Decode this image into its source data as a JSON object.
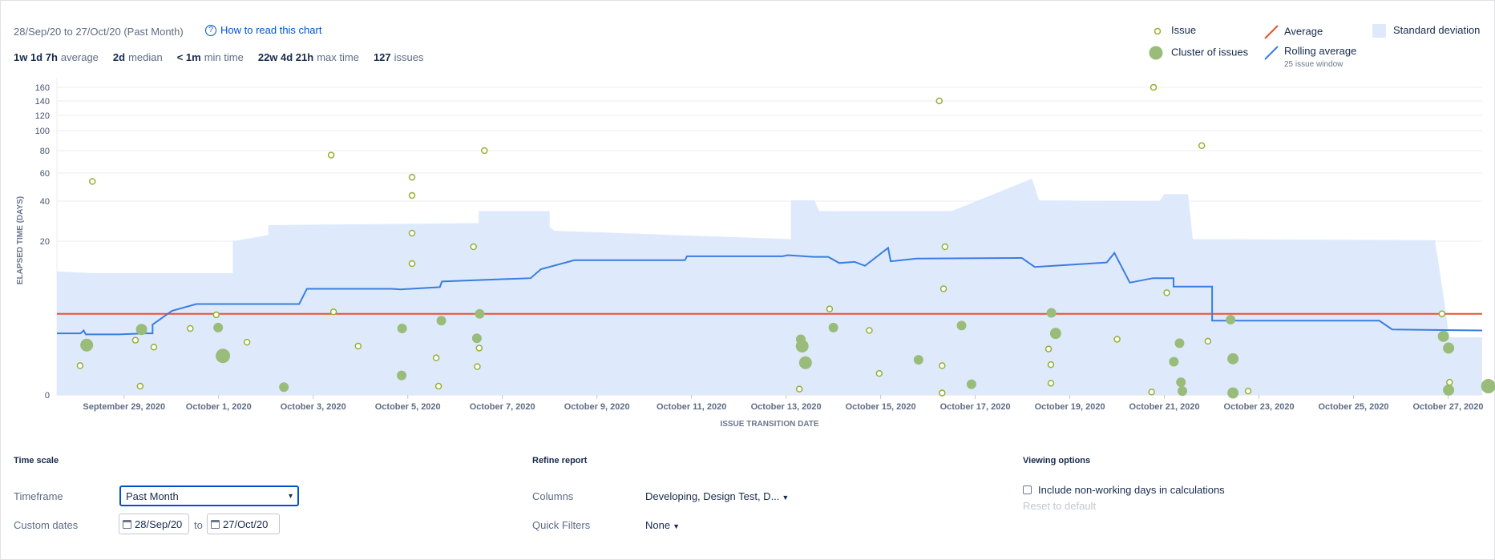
{
  "header": {
    "date_range": "28/Sep/20 to 27/Oct/20 (Past Month)",
    "how_to_link": "How to read this chart",
    "stats": [
      {
        "value": "1w 1d 7h",
        "label": "average"
      },
      {
        "value": "2d",
        "label": "median"
      },
      {
        "value": "< 1m",
        "label": "min time"
      },
      {
        "value": "22w 4d 21h",
        "label": "max time"
      },
      {
        "value": "127",
        "label": "issues"
      }
    ]
  },
  "legend": {
    "issue": "Issue",
    "cluster": "Cluster of issues",
    "average": "Average",
    "rolling": "Rolling average",
    "rolling_sub": "25 issue window",
    "stddev": "Standard deviation"
  },
  "colors": {
    "issue_stroke": "#94b031",
    "cluster_fill": "#99bc7a",
    "average": "#e5532f",
    "rolling": "#3a7de0",
    "stddev": "#deeafb"
  },
  "chart_data": {
    "type": "scatter",
    "xlabel": "ISSUE TRANSITION DATE",
    "ylabel": "ELAPSED TIME (DAYS)",
    "y_ticks": [
      0,
      20,
      40,
      60,
      80,
      100,
      120,
      140,
      160
    ],
    "x_ticks": [
      "September 29, 2020",
      "October 1, 2020",
      "October 3, 2020",
      "October 5, 2020",
      "October 7, 2020",
      "October 9, 2020",
      "October 11, 2020",
      "October 13, 2020",
      "October 15, 2020",
      "October 17, 2020",
      "October 19, 2020",
      "October 21, 2020",
      "October 23, 2020",
      "October 25, 2020",
      "October 27, 2020"
    ],
    "x_range_days": [
      -0.42,
      29.72
    ],
    "y_range": [
      0,
      170
    ],
    "average_days": 8.3,
    "issues": [
      [
        0.07,
        3.0
      ],
      [
        0.33,
        54
      ],
      [
        1.24,
        5.6
      ],
      [
        1.34,
        0.9
      ],
      [
        1.63,
        4.9
      ],
      [
        2.4,
        6.8
      ],
      [
        2.95,
        8.2
      ],
      [
        3.6,
        5.4
      ],
      [
        5.38,
        76
      ],
      [
        5.43,
        8.5
      ],
      [
        5.95,
        5.0
      ],
      [
        7.09,
        57
      ],
      [
        7.09,
        44
      ],
      [
        7.09,
        24
      ],
      [
        7.09,
        16
      ],
      [
        7.6,
        3.8
      ],
      [
        7.65,
        0.9
      ],
      [
        8.39,
        19
      ],
      [
        8.47,
        2.9
      ],
      [
        8.51,
        4.8
      ],
      [
        8.62,
        80
      ],
      [
        15.28,
        0.6
      ],
      [
        15.92,
        8.8
      ],
      [
        16.76,
        6.6
      ],
      [
        16.97,
        2.2
      ],
      [
        18.24,
        140
      ],
      [
        18.3,
        0.2
      ],
      [
        18.3,
        3.0
      ],
      [
        18.33,
        11.5
      ],
      [
        18.36,
        19
      ],
      [
        20.55,
        4.7
      ],
      [
        20.6,
        1.2
      ],
      [
        20.6,
        3.1
      ],
      [
        22.0,
        5.7
      ],
      [
        22.73,
        0.3
      ],
      [
        22.77,
        160
      ],
      [
        23.05,
        10.8
      ],
      [
        23.79,
        85
      ],
      [
        23.92,
        5.5
      ],
      [
        24.77,
        0.4
      ],
      [
        28.87,
        8.3
      ],
      [
        29.03,
        1.3
      ]
    ],
    "clusters": [
      [
        0.21,
        5.1,
        8
      ],
      [
        1.37,
        6.7,
        7
      ],
      [
        2.99,
        6.9,
        6
      ],
      [
        3.09,
        4.0,
        9
      ],
      [
        4.38,
        0.8,
        6
      ],
      [
        6.88,
        6.8,
        6
      ],
      [
        6.87,
        2.0,
        6
      ],
      [
        7.71,
        7.6,
        6
      ],
      [
        8.46,
        5.8,
        6
      ],
      [
        8.52,
        8.3,
        6
      ],
      [
        15.31,
        5.7,
        6
      ],
      [
        15.34,
        5.0,
        8
      ],
      [
        15.41,
        3.3,
        8
      ],
      [
        16.0,
        6.9,
        6
      ],
      [
        17.8,
        3.6,
        6
      ],
      [
        18.71,
        7.1,
        6
      ],
      [
        18.92,
        1.1,
        6
      ],
      [
        20.61,
        8.4,
        6
      ],
      [
        20.7,
        6.3,
        7
      ],
      [
        23.2,
        3.4,
        6
      ],
      [
        23.32,
        5.3,
        6
      ],
      [
        23.35,
        1.3,
        6
      ],
      [
        23.38,
        0.4,
        6
      ],
      [
        24.4,
        7.7,
        6
      ],
      [
        24.45,
        3.7,
        7
      ],
      [
        24.45,
        0.2,
        7
      ],
      [
        28.9,
        6.0,
        7
      ],
      [
        29.01,
        4.8,
        7
      ],
      [
        29.01,
        0.5,
        7
      ],
      [
        29.85,
        0.9,
        9
      ]
    ],
    "rolling_average": [
      [
        -0.42,
        6.3
      ],
      [
        0.5,
        6.3
      ],
      [
        0.62,
        6.6
      ],
      [
        0.7,
        6.2
      ],
      [
        2.0,
        6.2
      ],
      [
        3.0,
        6.3
      ],
      [
        3.3,
        6.3
      ],
      [
        3.3,
        7.2
      ],
      [
        4.05,
        8.6
      ],
      [
        5.0,
        9.3
      ],
      [
        8.52,
        9.3
      ],
      [
        9.0,
        9.3
      ],
      [
        9.3,
        11.5
      ],
      [
        12.6,
        11.5
      ],
      [
        12.95,
        11.4
      ],
      [
        14.47,
        11.8
      ],
      [
        14.55,
        12.8
      ],
      [
        18.0,
        13.4
      ],
      [
        18.4,
        15.0
      ],
      [
        19.7,
        16.6
      ],
      [
        24.0,
        16.6
      ],
      [
        24.08,
        17.3
      ],
      [
        27.8,
        17.3
      ],
      [
        28.0,
        17.5
      ],
      [
        29.0,
        17.2
      ],
      [
        29.57,
        17.2
      ],
      [
        30.0,
        16.1
      ],
      [
        30.6,
        16.3
      ],
      [
        31.0,
        15.6
      ],
      [
        31.9,
        18.8
      ],
      [
        32.0,
        16.4
      ],
      [
        33.0,
        16.9
      ],
      [
        37.1,
        17.0
      ],
      [
        37.6,
        15.4
      ],
      [
        40.4,
        16.2
      ],
      [
        40.7,
        17.9
      ],
      [
        41.3,
        12.6
      ],
      [
        42.2,
        13.4
      ],
      [
        43.0,
        13.4
      ],
      [
        43.0,
        11.9
      ],
      [
        44.5,
        11.9
      ],
      [
        44.5,
        7.6
      ],
      [
        50.2,
        7.6
      ],
      [
        51.0,
        7.6
      ],
      [
        51.5,
        6.7
      ],
      [
        55.0,
        6.6
      ]
    ],
    "rolling_average_note": "",
    "stddev_upper": [
      [
        -0.42,
        14.6
      ],
      [
        0.3,
        14.3
      ],
      [
        3.3,
        14.3
      ],
      [
        3.3,
        20.0
      ],
      [
        4.05,
        23.0
      ],
      [
        4.05,
        28.0
      ],
      [
        8.5,
        29.0
      ],
      [
        8.5,
        35.0
      ],
      [
        10.0,
        35.0
      ],
      [
        10.0,
        27.0
      ],
      [
        10.1,
        25.2
      ],
      [
        15.1,
        21.0
      ],
      [
        15.1,
        40.5
      ],
      [
        15.6,
        40.5
      ],
      [
        15.7,
        35.0
      ],
      [
        18.5,
        35.0
      ],
      [
        20.2,
        56.0
      ],
      [
        20.35,
        40.5
      ],
      [
        22.9,
        40.0
      ],
      [
        22.9,
        40.0
      ],
      [
        23.0,
        45.0
      ],
      [
        23.5,
        45.0
      ],
      [
        23.6,
        21.0
      ],
      [
        28.72,
        20.5
      ],
      [
        28.92,
        9.6
      ],
      [
        29.02,
        5.9
      ],
      [
        29.72,
        5.9
      ]
    ]
  },
  "x_axis": {
    "ticks": [
      "September 29, 2020",
      "October 1, 2020",
      "October 3, 2020",
      "October 5, 2020",
      "October 7, 2020",
      "October 9, 2020",
      "October 11, 2020",
      "October 13, 2020",
      "October 15, 2020",
      "October 17, 2020",
      "October 19, 2020",
      "October 21, 2020",
      "October 23, 2020",
      "October 25, 2020",
      "October 27, 2020"
    ]
  },
  "controls": {
    "time_scale": {
      "title": "Time scale",
      "timeframe_label": "Timeframe",
      "timeframe_value": "Past Month",
      "custom_dates_label": "Custom dates",
      "start_date": "28/Sep/20",
      "to": "to",
      "end_date": "27/Oct/20"
    },
    "refine": {
      "title": "Refine report",
      "columns_label": "Columns",
      "columns_value": "Developing, Design Test, D...",
      "quick_filters_label": "Quick Filters",
      "quick_filters_value": "None"
    },
    "viewing": {
      "title": "Viewing options",
      "non_working_days": "Include non-working days in calculations",
      "reset": "Reset to default"
    }
  }
}
